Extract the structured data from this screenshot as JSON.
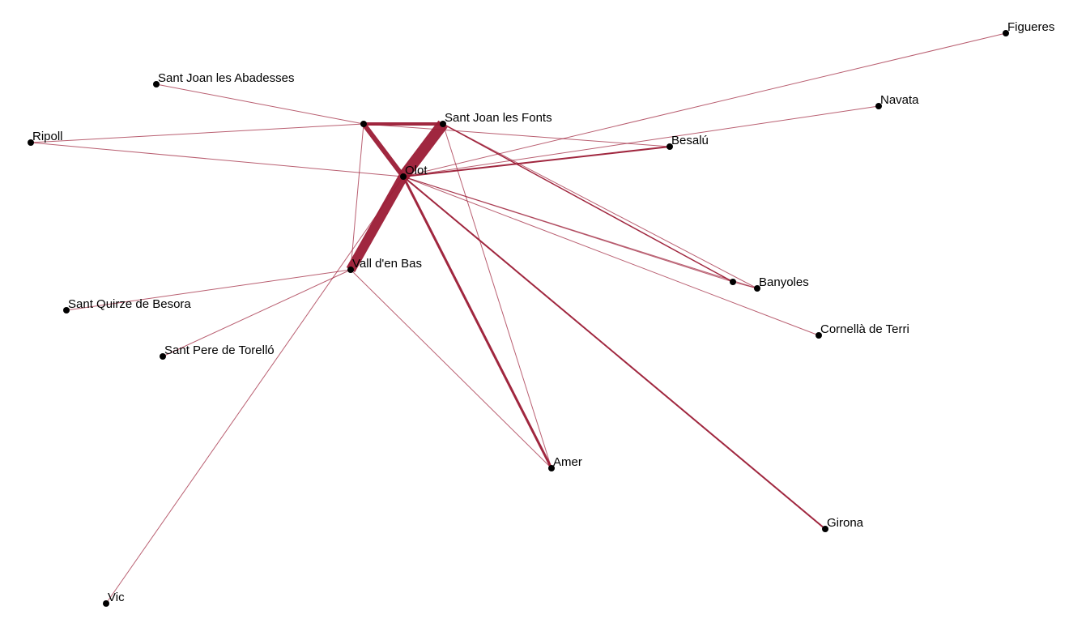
{
  "diagram": {
    "type": "network",
    "edge_color": "#9b1b35",
    "node_color": "#000000",
    "nodes": [
      {
        "id": "figueres",
        "label": "Figueres"
      },
      {
        "id": "navata",
        "label": "Navata"
      },
      {
        "id": "besalu",
        "label": "Besalú"
      },
      {
        "id": "sjf",
        "label": "Sant Joan les Fonts"
      },
      {
        "id": "u1",
        "label": ""
      },
      {
        "id": "sja",
        "label": "Sant Joan les Abadesses"
      },
      {
        "id": "ripoll",
        "label": "Ripoll"
      },
      {
        "id": "olot",
        "label": "Olot"
      },
      {
        "id": "vall",
        "label": "Vall d'en Bas"
      },
      {
        "id": "u2",
        "label": ""
      },
      {
        "id": "banyoles",
        "label": "Banyoles"
      },
      {
        "id": "cornella",
        "label": "Cornellà de Terri"
      },
      {
        "id": "squirze",
        "label": "Sant Quirze de Besora"
      },
      {
        "id": "spere",
        "label": "Sant Pere de Torelló"
      },
      {
        "id": "amer",
        "label": "Amer"
      },
      {
        "id": "girona",
        "label": "Girona"
      },
      {
        "id": "vic",
        "label": "Vic"
      }
    ],
    "edges": [
      {
        "source": "sjf",
        "target": "olot",
        "weight": 14
      },
      {
        "source": "olot",
        "target": "vall",
        "weight": 12
      },
      {
        "source": "u1",
        "target": "olot",
        "weight": 6
      },
      {
        "source": "u1",
        "target": "sjf",
        "weight": 4
      },
      {
        "source": "olot",
        "target": "amer",
        "weight": 3
      },
      {
        "source": "olot",
        "target": "besalu",
        "weight": 2
      },
      {
        "source": "olot",
        "target": "girona",
        "weight": 2
      },
      {
        "source": "sjf",
        "target": "u2",
        "weight": 1.5
      },
      {
        "source": "olot",
        "target": "navata",
        "weight": 1
      },
      {
        "source": "olot",
        "target": "figueres",
        "weight": 1
      },
      {
        "source": "olot",
        "target": "ripoll",
        "weight": 1
      },
      {
        "source": "olot",
        "target": "banyoles",
        "weight": 1
      },
      {
        "source": "olot",
        "target": "u2",
        "weight": 1
      },
      {
        "source": "olot",
        "target": "cornella",
        "weight": 1
      },
      {
        "source": "olot",
        "target": "vic",
        "weight": 1
      },
      {
        "source": "u1",
        "target": "besalu",
        "weight": 1
      },
      {
        "source": "u1",
        "target": "sja",
        "weight": 1
      },
      {
        "source": "u1",
        "target": "ripoll",
        "weight": 1
      },
      {
        "source": "u1",
        "target": "vall",
        "weight": 1
      },
      {
        "source": "sjf",
        "target": "banyoles",
        "weight": 1
      },
      {
        "source": "sjf",
        "target": "amer",
        "weight": 1
      },
      {
        "source": "vall",
        "target": "squirze",
        "weight": 1
      },
      {
        "source": "vall",
        "target": "spere",
        "weight": 1
      },
      {
        "source": "vall",
        "target": "amer",
        "weight": 1
      },
      {
        "source": "u2",
        "target": "banyoles",
        "weight": 1
      }
    ]
  }
}
